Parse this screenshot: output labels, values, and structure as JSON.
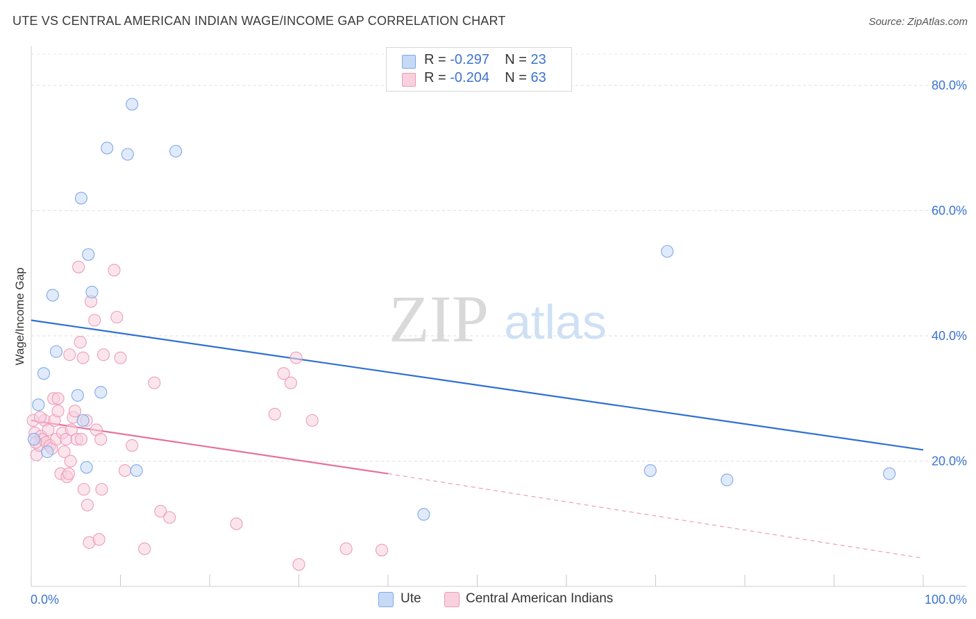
{
  "header": {
    "title": "UTE VS CENTRAL AMERICAN INDIAN WAGE/INCOME GAP CORRELATION CHART",
    "source": "Source: ZipAtlas.com"
  },
  "watermark": {
    "zip": "ZIP",
    "atlas": "atlas"
  },
  "legend": {
    "r_label": "R =",
    "n_label": "N =",
    "rows": [
      {
        "r_value": "-0.297",
        "n_value": "23"
      },
      {
        "r_value": "-0.204",
        "n_value": "63"
      }
    ]
  },
  "bottom_legend": {
    "ute": "Ute",
    "central_american_indians": "Central American Indians"
  },
  "chart_data": {
    "type": "scatter",
    "title": "UTE VS CENTRAL AMERICAN INDIAN WAGE/INCOME GAP CORRELATION CHART",
    "xlabel": "",
    "ylabel": "Wage/Income Gap",
    "xlim": [
      0,
      100
    ],
    "ylim": [
      0,
      85
    ],
    "x_tick_labels": [
      "0.0%",
      "100.0%"
    ],
    "y_tick_labels": [
      "80.0%",
      "60.0%",
      "40.0%",
      "20.0%"
    ],
    "y_ticks": [
      80,
      60,
      40,
      20
    ],
    "grid": true,
    "legend_position": "top-center",
    "colors": {
      "ute": "#7fa9e8",
      "ute_fill": "#c6d9f5",
      "cai": "#ec9cb8",
      "cai_fill": "#f8d0de",
      "ute_line": "#2f6fd1",
      "cai_line": "#e5719a"
    },
    "series": [
      {
        "name": "Ute",
        "r": -0.297,
        "n": 23,
        "trend": {
          "x0": 0,
          "y0": 42.5,
          "x1": 100,
          "y1": 21.8
        },
        "points": [
          [
            0.3,
            23.5
          ],
          [
            0.8,
            29.0
          ],
          [
            1.4,
            34.0
          ],
          [
            1.8,
            21.5
          ],
          [
            2.4,
            46.5
          ],
          [
            2.8,
            37.5
          ],
          [
            5.2,
            30.5
          ],
          [
            5.8,
            26.5
          ],
          [
            6.4,
            53.0
          ],
          [
            6.8,
            47.0
          ],
          [
            5.6,
            62.0
          ],
          [
            6.2,
            19.0
          ],
          [
            7.8,
            31.0
          ],
          [
            8.5,
            70.0
          ],
          [
            10.8,
            69.0
          ],
          [
            11.3,
            77.0
          ],
          [
            11.8,
            18.5
          ],
          [
            16.2,
            69.5
          ],
          [
            44.0,
            11.5
          ],
          [
            71.3,
            53.5
          ],
          [
            69.4,
            18.5
          ],
          [
            78.0,
            17.0
          ],
          [
            96.2,
            18.0
          ]
        ]
      },
      {
        "name": "Central American Indians",
        "r": -0.204,
        "n": 63,
        "trend": {
          "x0": 0,
          "y0": 26.5,
          "x1": 40,
          "y1": 18.0,
          "dash_x1": 100,
          "dash_y1": 4.5
        },
        "points": [
          [
            0.2,
            26.5
          ],
          [
            0.4,
            24.5
          ],
          [
            0.6,
            21.0
          ],
          [
            0.9,
            22.5
          ],
          [
            1.1,
            24.0
          ],
          [
            1.3,
            23.5
          ],
          [
            1.5,
            26.5
          ],
          [
            1.7,
            23.0
          ],
          [
            1.9,
            25.0
          ],
          [
            2.1,
            22.5
          ],
          [
            2.3,
            22.0
          ],
          [
            2.5,
            30.0
          ],
          [
            2.6,
            26.5
          ],
          [
            2.8,
            23.5
          ],
          [
            3.0,
            30.0
          ],
          [
            3.0,
            28.0
          ],
          [
            3.3,
            18.0
          ],
          [
            3.5,
            24.5
          ],
          [
            3.7,
            21.5
          ],
          [
            3.9,
            23.5
          ],
          [
            4.0,
            17.5
          ],
          [
            4.2,
            18.0
          ],
          [
            4.3,
            37.0
          ],
          [
            4.4,
            20.0
          ],
          [
            4.5,
            25.0
          ],
          [
            4.7,
            27.0
          ],
          [
            4.9,
            28.0
          ],
          [
            5.1,
            23.5
          ],
          [
            5.3,
            51.0
          ],
          [
            5.5,
            39.0
          ],
          [
            5.6,
            23.5
          ],
          [
            5.8,
            36.5
          ],
          [
            5.9,
            15.5
          ],
          [
            6.2,
            26.5
          ],
          [
            6.3,
            13.0
          ],
          [
            6.5,
            7.0
          ],
          [
            6.7,
            45.5
          ],
          [
            7.1,
            42.5
          ],
          [
            7.3,
            25.0
          ],
          [
            7.6,
            7.5
          ],
          [
            7.8,
            23.5
          ],
          [
            7.9,
            15.5
          ],
          [
            8.1,
            37.0
          ],
          [
            9.3,
            50.5
          ],
          [
            9.6,
            43.0
          ],
          [
            10.0,
            36.5
          ],
          [
            10.5,
            18.5
          ],
          [
            11.3,
            22.5
          ],
          [
            12.7,
            6.0
          ],
          [
            13.8,
            32.5
          ],
          [
            14.5,
            12.0
          ],
          [
            15.5,
            11.0
          ],
          [
            23.0,
            10.0
          ],
          [
            27.3,
            27.5
          ],
          [
            28.3,
            34.0
          ],
          [
            29.1,
            32.5
          ],
          [
            29.7,
            36.5
          ],
          [
            30.0,
            3.5
          ],
          [
            31.5,
            26.5
          ],
          [
            35.3,
            6.0
          ],
          [
            39.3,
            5.8
          ],
          [
            0.5,
            23.0
          ],
          [
            1.0,
            27.0
          ]
        ]
      }
    ]
  }
}
